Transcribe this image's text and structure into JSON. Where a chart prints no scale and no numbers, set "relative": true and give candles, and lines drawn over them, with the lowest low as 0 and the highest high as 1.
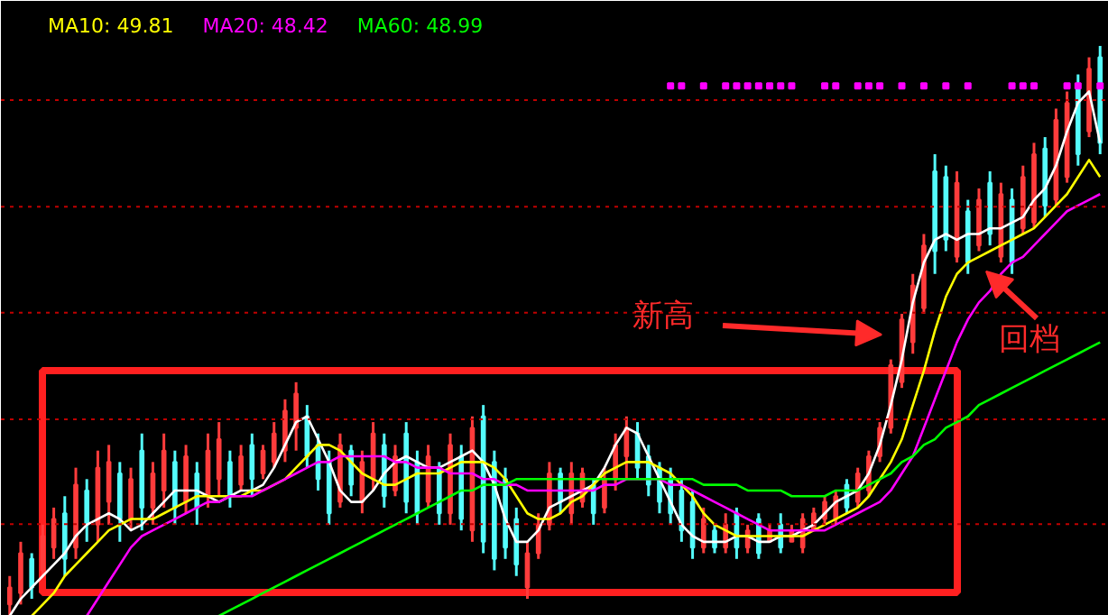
{
  "chart_data": {
    "type": "candlestick",
    "relative": true,
    "legend": "top left",
    "colors": [
      "#ff3c3c",
      "#ff3c3c",
      "#54fcfc",
      "#ff3c3c",
      "#ff3c3c",
      "#54fcfc",
      "#ff3c3c",
      "#54fcfc",
      "#ff3c3c",
      "#ff3c3c",
      "#54fcfc",
      "#ff3c3c",
      "#54fcfc",
      "#ff3c3c",
      "#ff3c3c",
      "#54fcfc",
      "#ff3c3c",
      "#54fcfc",
      "#ff3c3c",
      "#ff3c3c",
      "#54fcfc",
      "#ff3c3c",
      "#54fcfc",
      "#ff3c3c",
      "#ff3c3c",
      "#ff3c3c",
      "#ff3c3c",
      "#54fcfc",
      "#54fcfc",
      "#54fcfc",
      "#ff3c3c",
      "#54fcfc",
      "#ff3c3c",
      "#ff3c3c",
      "#54fcfc",
      "#ff3c3c",
      "#54fcfc",
      "#54fcfc",
      "#ff3c3c",
      "#54fcfc",
      "#ff3c3c",
      "#54fcfc",
      "#ff3c3c",
      "#54fcfc",
      "#54fcfc",
      "#54fcfc",
      "#54fcfc",
      "#ff3c3c",
      "#ff3c3c",
      "#ff3c3c",
      "#54fcfc",
      "#ff3c3c",
      "#ff3c3c",
      "#54fcfc",
      "#ff3c3c",
      "#ff3c3c",
      "#ff3c3c",
      "#54fcfc",
      "#54fcfc",
      "#54fcfc",
      "#54fcfc",
      "#54fcfc",
      "#54fcfc",
      "#ff3c3c",
      "#54fcfc",
      "#ff3c3c",
      "#54fcfc",
      "#ff3c3c",
      "#54fcfc",
      "#ff3c3c",
      "#54fcfc",
      "#ff3c3c",
      "#ff3c3c",
      "#ff3c3c",
      "#ff3c3c",
      "#ff3c3c",
      "#54fcfc",
      "#ff3c3c",
      "#ff3c3c",
      "#ff3c3c",
      "#ff3c3c",
      "#ff3c3c",
      "#ff3c3c",
      "#ff3c3c",
      "#54fcfc",
      "#54fcfc",
      "#ff3c3c",
      "#54fcfc",
      "#ff3c3c",
      "#54fcfc",
      "#ff3c3c",
      "#54fcfc",
      "#ff3c3c",
      "#ff3c3c",
      "#54fcfc",
      "#ff3c3c",
      "#ff3c3c",
      "#54fcfc",
      "#ff3c3c",
      "#54fcfc"
    ],
    "categories": [
      null,
      null,
      null,
      null,
      null,
      null,
      null,
      null,
      null,
      null,
      null,
      null,
      null,
      null,
      null,
      null,
      null,
      null,
      null,
      null,
      null,
      null,
      null,
      null,
      null,
      null,
      null,
      null,
      null,
      null,
      null,
      null,
      null,
      null,
      null,
      null,
      null,
      null,
      null,
      null,
      null,
      null,
      null,
      null,
      null,
      null,
      null,
      null,
      null,
      null,
      null,
      null,
      null,
      null,
      null,
      null,
      null,
      null,
      null,
      null,
      null,
      null,
      null,
      null,
      null,
      null,
      null,
      null,
      null,
      null,
      null,
      null,
      null,
      null,
      null,
      null,
      null,
      null,
      null,
      null,
      null,
      null,
      null,
      null,
      null,
      null,
      null,
      null,
      null,
      null,
      null,
      null,
      null,
      null,
      null,
      null,
      null,
      null,
      null,
      null
    ],
    "ohlc": [
      [
        0.02,
        0.07,
        0,
        0.05
      ],
      [
        0.04,
        0.13,
        0.02,
        0.11
      ],
      [
        0.1,
        0.11,
        0.03,
        0.05
      ],
      [
        0.08,
        0.16,
        0.07,
        0.14
      ],
      [
        0.12,
        0.19,
        0.1,
        0.17
      ],
      [
        0.18,
        0.21,
        0.07,
        0.1
      ],
      [
        0.12,
        0.26,
        0.1,
        0.23
      ],
      [
        0.22,
        0.24,
        0.13,
        0.16
      ],
      [
        0.16,
        0.29,
        0.13,
        0.26
      ],
      [
        0.2,
        0.3,
        0.16,
        0.27
      ],
      [
        0.25,
        0.27,
        0.13,
        0.17
      ],
      [
        0.17,
        0.26,
        0.15,
        0.24
      ],
      [
        0.29,
        0.32,
        0.15,
        0.19
      ],
      [
        0.19,
        0.27,
        0.16,
        0.25
      ],
      [
        0.22,
        0.32,
        0.19,
        0.29
      ],
      [
        0.27,
        0.29,
        0.16,
        0.19
      ],
      [
        0.2,
        0.3,
        0.18,
        0.28
      ],
      [
        0.25,
        0.27,
        0.16,
        0.19
      ],
      [
        0.21,
        0.32,
        0.19,
        0.29
      ],
      [
        0.24,
        0.34,
        0.21,
        0.31
      ],
      [
        0.27,
        0.29,
        0.19,
        0.21
      ],
      [
        0.23,
        0.3,
        0.22,
        0.28
      ],
      [
        0.3,
        0.32,
        0.21,
        0.24
      ],
      [
        0.25,
        0.3,
        0.24,
        0.29
      ],
      [
        0.27,
        0.34,
        0.26,
        0.32
      ],
      [
        0.29,
        0.38,
        0.27,
        0.36
      ],
      [
        0.33,
        0.41,
        0.29,
        0.39
      ],
      [
        0.35,
        0.37,
        0.26,
        0.28
      ],
      [
        0.3,
        0.32,
        0.22,
        0.24
      ],
      [
        0.27,
        0.29,
        0.16,
        0.18
      ],
      [
        0.2,
        0.32,
        0.19,
        0.3
      ],
      [
        0.29,
        0.3,
        0.21,
        0.23
      ],
      [
        0.2,
        0.29,
        0.18,
        0.27
      ],
      [
        0.24,
        0.34,
        0.22,
        0.32
      ],
      [
        0.3,
        0.32,
        0.19,
        0.21
      ],
      [
        0.22,
        0.3,
        0.21,
        0.28
      ],
      [
        0.32,
        0.34,
        0.18,
        0.2
      ],
      [
        0.27,
        0.29,
        0.16,
        0.18
      ],
      [
        0.2,
        0.3,
        0.19,
        0.28
      ],
      [
        0.26,
        0.27,
        0.16,
        0.18
      ],
      [
        0.18,
        0.32,
        0.16,
        0.3
      ],
      [
        0.28,
        0.3,
        0.15,
        0.17
      ],
      [
        0.15,
        0.35,
        0.13,
        0.33
      ],
      [
        0.35,
        0.37,
        0.11,
        0.13
      ],
      [
        0.27,
        0.29,
        0.08,
        0.1
      ],
      [
        0.24,
        0.26,
        0.1,
        0.12
      ],
      [
        0.17,
        0.19,
        0.07,
        0.09
      ],
      [
        0.05,
        0.13,
        0.03,
        0.11
      ],
      [
        0.11,
        0.18,
        0.1,
        0.16
      ],
      [
        0.16,
        0.27,
        0.15,
        0.25
      ],
      [
        0.25,
        0.26,
        0.18,
        0.2
      ],
      [
        0.18,
        0.27,
        0.16,
        0.25
      ],
      [
        0.2,
        0.26,
        0.19,
        0.25
      ],
      [
        0.23,
        0.24,
        0.16,
        0.18
      ],
      [
        0.19,
        0.26,
        0.18,
        0.24
      ],
      [
        0.24,
        0.32,
        0.22,
        0.3
      ],
      [
        0.28,
        0.35,
        0.24,
        0.33
      ],
      [
        0.32,
        0.34,
        0.24,
        0.26
      ],
      [
        0.28,
        0.3,
        0.21,
        0.23
      ],
      [
        0.26,
        0.27,
        0.18,
        0.2
      ],
      [
        0.24,
        0.26,
        0.16,
        0.18
      ],
      [
        0.22,
        0.24,
        0.13,
        0.15
      ],
      [
        0.2,
        0.22,
        0.1,
        0.12
      ],
      [
        0.12,
        0.19,
        0.11,
        0.17
      ],
      [
        0.15,
        0.16,
        0.11,
        0.12
      ],
      [
        0.12,
        0.18,
        0.11,
        0.16
      ],
      [
        0.18,
        0.19,
        0.1,
        0.12
      ],
      [
        0.12,
        0.16,
        0.11,
        0.15
      ],
      [
        0.17,
        0.18,
        0.1,
        0.11
      ],
      [
        0.13,
        0.16,
        0.13,
        0.15
      ],
      [
        0.16,
        0.18,
        0.11,
        0.12
      ],
      [
        0.13,
        0.16,
        0.13,
        0.15
      ],
      [
        0.12,
        0.18,
        0.11,
        0.17
      ],
      [
        0.15,
        0.19,
        0.15,
        0.18
      ],
      [
        0.17,
        0.21,
        0.16,
        0.2
      ],
      [
        0.17,
        0.22,
        0.16,
        0.21
      ],
      [
        0.23,
        0.24,
        0.18,
        0.19
      ],
      [
        0.2,
        0.26,
        0.19,
        0.25
      ],
      [
        0.22,
        0.29,
        0.21,
        0.28
      ],
      [
        0.28,
        0.34,
        0.27,
        0.33
      ],
      [
        0.33,
        0.45,
        0.32,
        0.44
      ],
      [
        0.41,
        0.53,
        0.4,
        0.52
      ],
      [
        0.48,
        0.6,
        0.46,
        0.58
      ],
      [
        0.54,
        0.67,
        0.53,
        0.65
      ],
      [
        0.78,
        0.81,
        0.6,
        0.64
      ],
      [
        0.77,
        0.79,
        0.64,
        0.66
      ],
      [
        0.63,
        0.78,
        0.62,
        0.76
      ],
      [
        0.71,
        0.73,
        0.6,
        0.62
      ],
      [
        0.65,
        0.75,
        0.64,
        0.73
      ],
      [
        0.76,
        0.78,
        0.65,
        0.67
      ],
      [
        0.63,
        0.76,
        0.62,
        0.74
      ],
      [
        0.73,
        0.75,
        0.6,
        0.62
      ],
      [
        0.68,
        0.79,
        0.67,
        0.77
      ],
      [
        0.69,
        0.83,
        0.68,
        0.81
      ],
      [
        0.82,
        0.84,
        0.7,
        0.72
      ],
      [
        0.73,
        0.89,
        0.72,
        0.87
      ],
      [
        0.77,
        0.92,
        0.76,
        0.9
      ],
      [
        0.93,
        0.95,
        0.79,
        0.81
      ],
      [
        0.85,
        0.98,
        0.84,
        0.96
      ],
      [
        0.98,
        1,
        0.81,
        0.83
      ]
    ],
    "series": [
      {
        "type": "line",
        "color": "#ffffff",
        "values": [
          0,
          0.03,
          0.05,
          0.07,
          0.09,
          0.11,
          0.14,
          0.16,
          0.17,
          0.18,
          0.17,
          0.15,
          0.16,
          0.18,
          0.2,
          0.22,
          0.22,
          0.22,
          0.21,
          0.2,
          0.21,
          0.22,
          0.22,
          0.23,
          0.26,
          0.3,
          0.34,
          0.35,
          0.31,
          0.27,
          0.22,
          0.2,
          0.2,
          0.22,
          0.25,
          0.27,
          0.28,
          0.27,
          0.26,
          0.26,
          0.27,
          0.28,
          0.29,
          0.27,
          0.23,
          0.17,
          0.13,
          0.13,
          0.15,
          0.19,
          0.2,
          0.21,
          0.22,
          0.23,
          0.26,
          0.3,
          0.33,
          0.32,
          0.28,
          0.24,
          0.2,
          0.16,
          0.14,
          0.13,
          0.13,
          0.13,
          0.14,
          0.14,
          0.13,
          0.13,
          0.14,
          0.14,
          0.15,
          0.16,
          0.18,
          0.2,
          0.21,
          0.22,
          0.25,
          0.3,
          0.37,
          0.45,
          0.55,
          0.62,
          0.66,
          0.67,
          0.66,
          0.67,
          0.67,
          0.68,
          0.68,
          0.69,
          0.7,
          0.73,
          0.75,
          0.79,
          0.85,
          0.9,
          0.92,
          0.83
        ]
      },
      {
        "type": "line",
        "name": "MA10: 49.81",
        "color": "#ffff00",
        "values": [
          null,
          null,
          0,
          0.02,
          0.04,
          0.07,
          0.09,
          0.11,
          0.13,
          0.15,
          0.16,
          0.17,
          0.17,
          0.17,
          0.18,
          0.19,
          0.2,
          0.21,
          0.21,
          0.21,
          0.21,
          0.21,
          0.22,
          0.22,
          0.23,
          0.24,
          0.26,
          0.28,
          0.3,
          0.3,
          0.29,
          0.27,
          0.25,
          0.24,
          0.23,
          0.23,
          0.24,
          0.25,
          0.25,
          0.25,
          0.26,
          0.27,
          0.27,
          0.27,
          0.26,
          0.24,
          0.21,
          0.18,
          0.17,
          0.17,
          0.18,
          0.2,
          0.21,
          0.23,
          0.25,
          0.26,
          0.27,
          0.27,
          0.27,
          0.26,
          0.25,
          0.23,
          0.21,
          0.18,
          0.16,
          0.15,
          0.14,
          0.14,
          0.14,
          0.14,
          0.14,
          0.14,
          0.14,
          0.15,
          0.16,
          0.17,
          0.18,
          0.19,
          0.21,
          0.24,
          0.27,
          0.31,
          0.37,
          0.43,
          0.5,
          0.56,
          0.6,
          0.62,
          0.63,
          0.64,
          0.65,
          0.66,
          0.67,
          0.68,
          0.7,
          0.72,
          0.74,
          0.77,
          0.8,
          0.77
        ]
      },
      {
        "type": "line",
        "name": "MA20: 48.42",
        "color": "#ff00ff",
        "values": [
          null,
          null,
          null,
          null,
          null,
          null,
          null,
          0,
          0.03,
          0.06,
          0.09,
          0.12,
          0.14,
          0.15,
          0.16,
          0.17,
          0.18,
          0.19,
          0.2,
          0.2,
          0.21,
          0.21,
          0.21,
          0.22,
          0.23,
          0.24,
          0.25,
          0.26,
          0.27,
          0.27,
          0.28,
          0.28,
          0.28,
          0.28,
          0.28,
          0.27,
          0.27,
          0.26,
          0.26,
          0.26,
          0.25,
          0.25,
          0.25,
          0.24,
          0.24,
          0.23,
          0.23,
          0.22,
          0.22,
          0.22,
          0.22,
          0.22,
          0.22,
          0.22,
          0.23,
          0.23,
          0.24,
          0.24,
          0.24,
          0.24,
          0.23,
          0.23,
          0.22,
          0.21,
          0.2,
          0.19,
          0.18,
          0.17,
          0.16,
          0.15,
          0.15,
          0.15,
          0.15,
          0.15,
          0.15,
          0.16,
          0.17,
          0.18,
          0.19,
          0.2,
          0.22,
          0.25,
          0.28,
          0.33,
          0.38,
          0.43,
          0.48,
          0.52,
          0.55,
          0.57,
          0.6,
          0.62,
          0.63,
          0.65,
          0.67,
          0.69,
          0.71,
          0.72,
          0.73,
          0.74
        ]
      },
      {
        "type": "line",
        "name": "MA60: 48.99",
        "color": "#00ff00",
        "values": [
          null,
          null,
          null,
          null,
          null,
          null,
          null,
          null,
          null,
          null,
          null,
          null,
          null,
          null,
          null,
          null,
          null,
          null,
          null,
          0,
          0.01,
          0.02,
          0.03,
          0.04,
          0.05,
          0.06,
          0.07,
          0.08,
          0.09,
          0.1,
          0.11,
          0.12,
          0.13,
          0.14,
          0.15,
          0.16,
          0.17,
          0.18,
          0.19,
          0.2,
          0.21,
          0.22,
          0.22,
          0.23,
          0.23,
          0.23,
          0.24,
          0.24,
          0.24,
          0.24,
          0.24,
          0.24,
          0.24,
          0.24,
          0.24,
          0.24,
          0.24,
          0.24,
          0.24,
          0.24,
          0.24,
          0.24,
          0.24,
          0.23,
          0.23,
          0.23,
          0.23,
          0.22,
          0.22,
          0.22,
          0.22,
          0.21,
          0.21,
          0.21,
          0.21,
          0.22,
          0.22,
          0.22,
          0.23,
          0.24,
          0.25,
          0.27,
          0.28,
          0.3,
          0.31,
          0.33,
          0.34,
          0.35,
          0.37,
          0.38,
          0.39,
          0.4,
          0.41,
          0.42,
          0.43,
          0.44,
          0.45,
          0.46,
          0.47,
          0.48
        ]
      },
      {
        "type": "scatter",
        "marker": "square",
        "color": "#ff00ff",
        "values": [
          null,
          null,
          null,
          null,
          null,
          null,
          null,
          null,
          null,
          null,
          null,
          null,
          null,
          null,
          null,
          null,
          null,
          null,
          null,
          null,
          null,
          null,
          null,
          null,
          null,
          null,
          null,
          null,
          null,
          null,
          null,
          null,
          null,
          null,
          null,
          null,
          null,
          null,
          null,
          null,
          null,
          null,
          null,
          null,
          null,
          null,
          null,
          null,
          null,
          null,
          null,
          null,
          null,
          null,
          null,
          null,
          null,
          null,
          null,
          null,
          0.93,
          0.93,
          null,
          0.93,
          null,
          0.93,
          0.93,
          0.93,
          0.93,
          0.93,
          0.93,
          0.93,
          null,
          null,
          0.93,
          0.93,
          null,
          0.93,
          0.93,
          0.93,
          null,
          0.93,
          null,
          0.93,
          null,
          0.93,
          null,
          0.93,
          null,
          null,
          null,
          0.93,
          0.93,
          0.93,
          null,
          null,
          0.93,
          0.93,
          null,
          0.93
        ]
      }
    ],
    "ref_lines": [
      {
        "axis": "y",
        "value": 0.905,
        "color": "#c00000",
        "line_style": "dotted"
      },
      {
        "axis": "y",
        "value": 0.718,
        "color": "#c00000",
        "line_style": "dotted"
      },
      {
        "axis": "y",
        "value": 0.532,
        "color": "#c00000",
        "line_style": "dotted"
      },
      {
        "axis": "y",
        "value": 0.345,
        "color": "#c00000",
        "line_style": "dotted"
      },
      {
        "axis": "y",
        "value": 0.161,
        "color": "#c00000",
        "line_style": "dotted"
      }
    ],
    "annotations": [
      "新高",
      "回档"
    ]
  }
}
